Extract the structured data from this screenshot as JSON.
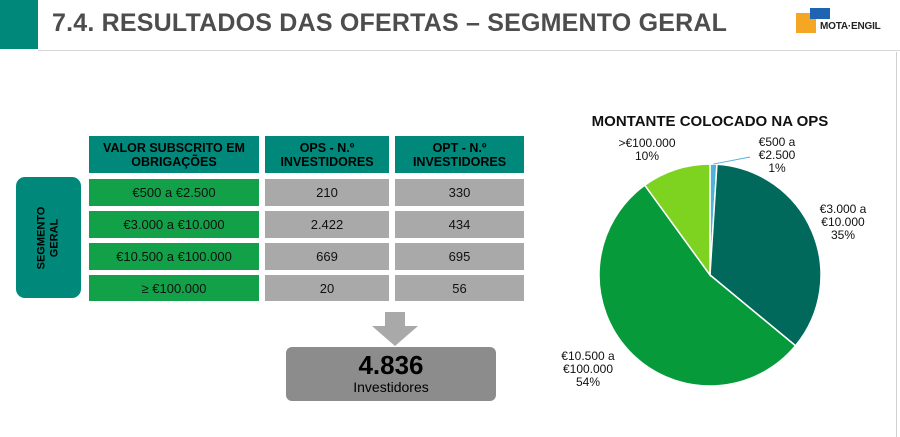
{
  "title": "7.4. RESULTADOS DAS OFERTAS – SEGMENTO GERAL",
  "logo": {
    "text": "MOTA·ENGIL"
  },
  "colors": {
    "accent": "#00897b",
    "green": "#12a048",
    "grey": "#a9a9a9",
    "totalbox": "#8c8c8c"
  },
  "table": {
    "side_label": "SEGMENTO\nGERAL",
    "headers": [
      "VALOR SUBSCRITO EM OBRIGAÇÕES",
      "OPS - N.º INVESTIDORES",
      "OPT - N.º INVESTIDORES"
    ],
    "rows": [
      {
        "range": "€500 a €2.500",
        "ops": "210",
        "opt": "330"
      },
      {
        "range": "€3.000 a €10.000",
        "ops": "2.422",
        "opt": "434"
      },
      {
        "range": "€10.500 a €100.000",
        "ops": "669",
        "opt": "695"
      },
      {
        "range": "≥ €100.000",
        "ops": "20",
        "opt": "56"
      }
    ]
  },
  "total": {
    "value": "4.836",
    "label": "Investidores"
  },
  "chart_data": {
    "type": "pie",
    "title": "MONTANTE COLOCADO NA OPS",
    "slices": [
      {
        "label": "€500 a €2.500",
        "value": 1,
        "pct_label": "1%",
        "color": "#4fb3d9"
      },
      {
        "label": "€3.000 a €10.000",
        "value": 35,
        "pct_label": "35%",
        "color": "#00695c"
      },
      {
        "label": "€10.500 a €100.000",
        "value": 54,
        "pct_label": "54%",
        "color": "#069a3a"
      },
      {
        "label": ">€100.000",
        "value": 10,
        "pct_label": "10%",
        "color": "#7ed321"
      }
    ]
  }
}
